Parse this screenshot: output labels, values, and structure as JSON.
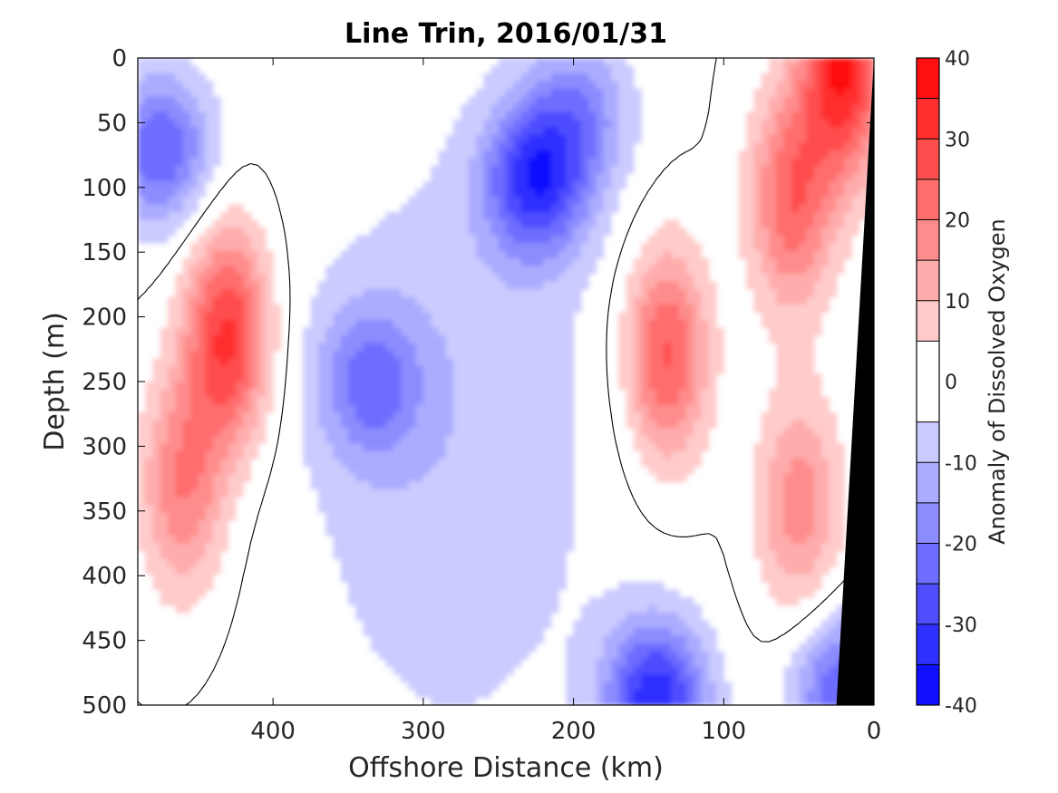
{
  "chart_data": {
    "type": "heatmap",
    "title": "Line Trin, 2016/01/31",
    "xlabel": "Offshore Distance (km)",
    "ylabel": "Depth (m)",
    "colorbar_label": "Anomaly of Dissolved Oxygen",
    "xlim": [
      490,
      0
    ],
    "ylim": [
      500,
      0
    ],
    "clim": [
      -40,
      40
    ],
    "x_ticks": [
      400,
      300,
      200,
      100,
      0
    ],
    "y_ticks": [
      0,
      50,
      100,
      150,
      200,
      250,
      300,
      350,
      400,
      450,
      500
    ],
    "colorbar_ticks": [
      40,
      30,
      20,
      10,
      0,
      -10,
      -20,
      -30,
      -40
    ],
    "contour_levels": [
      -40,
      -35,
      -30,
      -25,
      -20,
      -15,
      -10,
      -5,
      5,
      10,
      15,
      20,
      25,
      30,
      35,
      40
    ],
    "contour_line_level": 0,
    "colors": {
      "positive_max": "#ff0000",
      "negative_max": "#0000ff",
      "zero_band": "#ffffff",
      "bathymetry": "#000000",
      "zero_contour": "#000000"
    },
    "features": [
      {
        "sign": "positive",
        "center_km": 430,
        "center_depth_m": 215,
        "peak": 32
      },
      {
        "sign": "positive",
        "center_km": 460,
        "center_depth_m": 330,
        "peak": 20
      },
      {
        "sign": "positive",
        "center_km": 138,
        "center_depth_m": 230,
        "peak": 27
      },
      {
        "sign": "positive",
        "center_km": 55,
        "center_depth_m": 110,
        "peak": 24
      },
      {
        "sign": "positive",
        "center_km": 20,
        "center_depth_m": 5,
        "peak": 36
      },
      {
        "sign": "positive",
        "center_km": 50,
        "center_depth_m": 345,
        "peak": 18
      },
      {
        "sign": "negative",
        "center_km": 475,
        "center_depth_m": 70,
        "peak": -25
      },
      {
        "sign": "negative",
        "center_km": 225,
        "center_depth_m": 95,
        "peak": -30
      },
      {
        "sign": "negative",
        "center_km": 335,
        "center_depth_m": 250,
        "peak": -18
      },
      {
        "sign": "negative",
        "center_km": 145,
        "center_depth_m": 495,
        "peak": -33
      },
      {
        "sign": "negative",
        "center_km": 195,
        "center_depth_m": 40,
        "peak": -15
      },
      {
        "sign": "negative",
        "center_km": 20,
        "center_depth_m": 488,
        "peak": -25
      }
    ],
    "bathymetry_shelf_km_at_depth": [
      [
        0,
        0
      ],
      [
        25,
        500
      ]
    ]
  }
}
